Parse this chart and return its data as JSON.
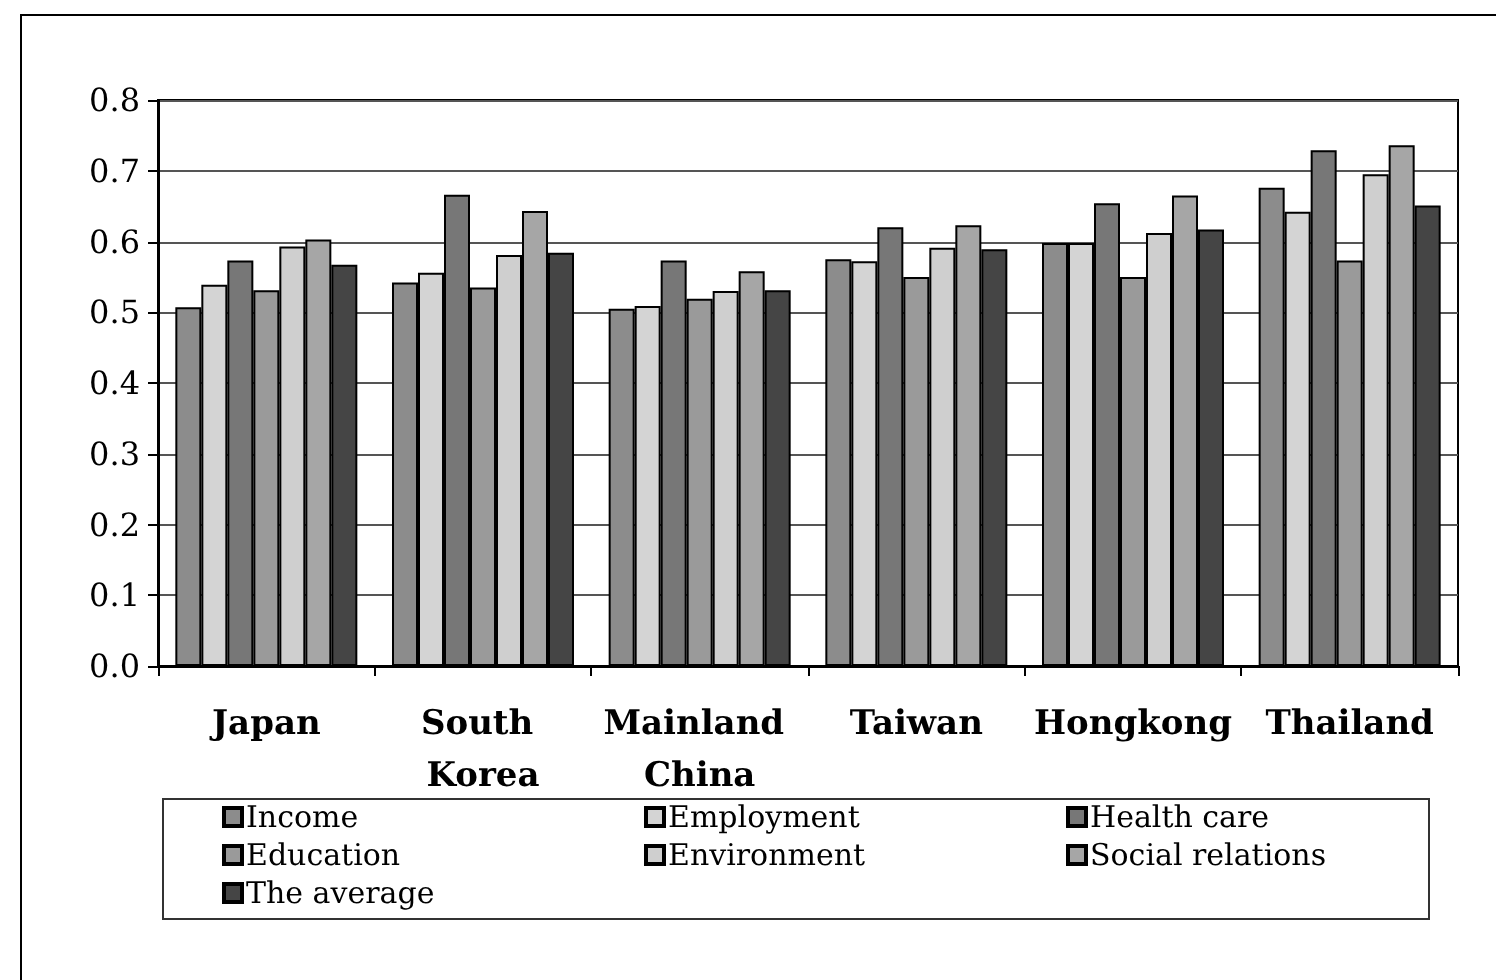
{
  "chart_data": {
    "type": "bar",
    "categories": [
      "Japan",
      "South Korea",
      "Mainland China",
      "Taiwan",
      "Hongkong",
      "Thailand"
    ],
    "series": [
      {
        "name": "Income",
        "color": "#8c8c8c",
        "values": [
          0.507,
          0.542,
          0.505,
          0.575,
          0.598,
          0.676
        ]
      },
      {
        "name": "Employment",
        "color": "#d4d4d4",
        "values": [
          0.539,
          0.556,
          0.509,
          0.572,
          0.598,
          0.642
        ]
      },
      {
        "name": "Health care",
        "color": "#777777",
        "values": [
          0.573,
          0.666,
          0.573,
          0.62,
          0.654,
          0.729
        ]
      },
      {
        "name": "Education",
        "color": "#9a9a9a",
        "values": [
          0.531,
          0.535,
          0.519,
          0.55,
          0.55,
          0.573
        ]
      },
      {
        "name": "Environment",
        "color": "#cfcfcf",
        "values": [
          0.593,
          0.581,
          0.53,
          0.591,
          0.612,
          0.695
        ]
      },
      {
        "name": "Social relations",
        "color": "#a6a6a6",
        "values": [
          0.603,
          0.643,
          0.558,
          0.623,
          0.665,
          0.736
        ]
      },
      {
        "name": "The average",
        "color": "#454545",
        "values": [
          0.567,
          0.584,
          0.531,
          0.589,
          0.617,
          0.651
        ]
      }
    ],
    "ylim": [
      0,
      0.8
    ],
    "yticks": [
      {
        "value": 0,
        "label": "0.0"
      },
      {
        "value": 0.1,
        "label": "0.1"
      },
      {
        "value": 0.2,
        "label": "0.2"
      },
      {
        "value": 0.3,
        "label": "0.3"
      },
      {
        "value": 0.4,
        "label": "0.4"
      },
      {
        "value": 0.5,
        "label": "0.5"
      },
      {
        "value": 0.6,
        "label": "0.6"
      },
      {
        "value": 0.7,
        "label": "0.7"
      },
      {
        "value": 0.8,
        "label": "0.8"
      }
    ],
    "grid": "y",
    "legend": "bottom"
  }
}
